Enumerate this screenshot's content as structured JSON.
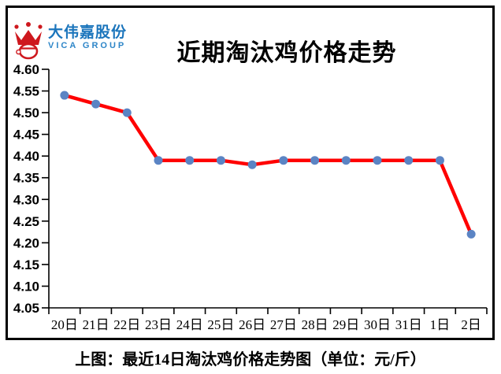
{
  "logo": {
    "company_cn": "大伟嘉股份",
    "company_en": "VICA GROUP",
    "brand_red": "#ce181e",
    "brand_blue": "#1b75bc"
  },
  "header": {
    "title": "近期淘汰鸡价格走势"
  },
  "caption": "上图：最近14日淘汰鸡价格走势图（单位：元/斤）",
  "chart_data": {
    "type": "line",
    "title": "近期淘汰鸡价格走势",
    "categories": [
      "20日",
      "21日",
      "22日",
      "23日",
      "24日",
      "25日",
      "26日",
      "27日",
      "28日",
      "29日",
      "30日",
      "31日",
      "1日",
      "2日"
    ],
    "values": [
      4.54,
      4.52,
      4.5,
      4.39,
      4.39,
      4.39,
      4.38,
      4.39,
      4.39,
      4.39,
      4.39,
      4.39,
      4.39,
      4.22
    ],
    "xlabel": "",
    "ylabel": "",
    "ylim": [
      4.05,
      4.6
    ],
    "ytick_step": 0.05,
    "grid": false,
    "legend": false,
    "line_color": "#ff0000",
    "marker_color": "#5b84c4",
    "axis_color": "#000000"
  }
}
